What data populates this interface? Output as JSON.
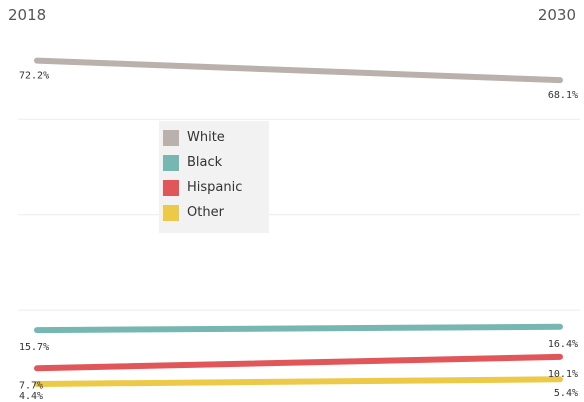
{
  "chart_data": {
    "type": "line",
    "categories": [
      "2018",
      "2030"
    ],
    "series": [
      {
        "name": "White",
        "values": [
          72.2,
          68.1
        ],
        "labels": [
          "72.2%",
          "68.1%"
        ],
        "color": "#bab0ac"
      },
      {
        "name": "Black",
        "values": [
          15.7,
          16.4
        ],
        "labels": [
          "15.7%",
          "16.4%"
        ],
        "color": "#76b7b2"
      },
      {
        "name": "Hispanic",
        "values": [
          7.7,
          10.1
        ],
        "labels": [
          "7.7%",
          "10.1%"
        ],
        "color": "#e15759"
      },
      {
        "name": "Other",
        "values": [
          4.4,
          5.4
        ],
        "labels": [
          "4.4%",
          "5.4%"
        ],
        "color": "#edc948"
      }
    ],
    "ylim": [
      0,
      80
    ],
    "grid": true,
    "legend_position": "top-left inside plot",
    "title": "",
    "xlabel": "",
    "ylabel": ""
  }
}
